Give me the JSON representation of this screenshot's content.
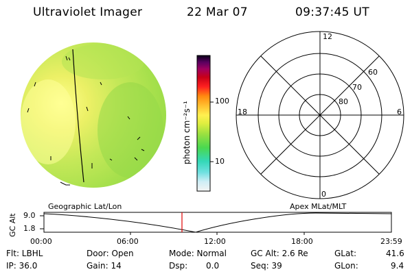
{
  "header": {
    "instrument": "Ultraviolet Imager",
    "date": "22 Mar 07",
    "time": "09:37:45 UT"
  },
  "colorbar": {
    "unit_label": "photon cm⁻²s⁻¹",
    "ticks": [
      "100",
      "10"
    ]
  },
  "polar_plot": {
    "mlt_labels": [
      "12",
      "18",
      "6",
      "0"
    ],
    "mlat_labels": [
      "60",
      "70",
      "80"
    ]
  },
  "orbit_panel": {
    "left_label": "Geographic Lat/Lon",
    "right_label": "Apex MLat/MLT",
    "y_axis_label": "GC Alt",
    "y_ticks": [
      "9.0",
      "1.8"
    ],
    "x_ticks": [
      "00:00",
      "06:00",
      "12:00",
      "18:00",
      "23:59"
    ],
    "marker_time": "09:37:45"
  },
  "status": {
    "filter": "Flt: LBHL",
    "ip": "IP: 36.0",
    "door": "Door: Open",
    "gain": "Gain: 14",
    "mode": "Mode: Normal",
    "dsp": "Dsp:",
    "dsp_value": "0.0",
    "gc_alt": "GC Alt: 2.6 Re",
    "seq": "Seq: 39",
    "glat": "GLat:",
    "glat_value": "41.6",
    "glon": "GLon:",
    "glon_value": "9.4"
  }
}
